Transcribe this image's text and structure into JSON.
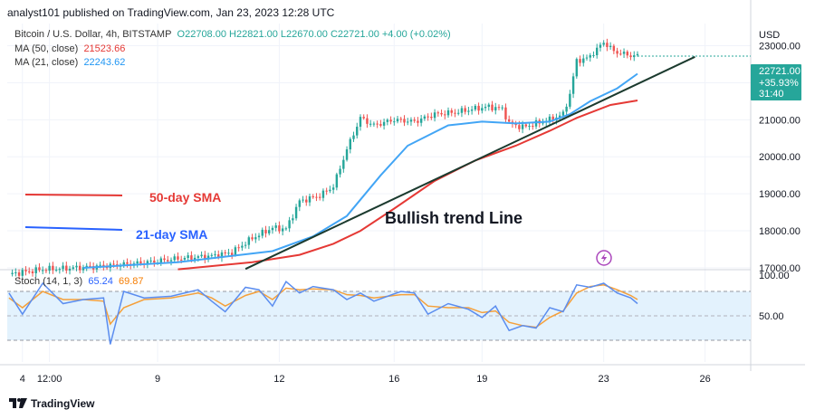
{
  "header": {
    "text": "analyst101 published on TradingView.com, Jan 23, 2023 12:28 UTC"
  },
  "legend": {
    "symbol": "Bitcoin / U.S. Dollar, 4h, BITSTAMP",
    "open": "O22708.00",
    "high": "H22821.00",
    "low": "L22670.00",
    "close": "C22721.00",
    "change": "+4.00 (+0.02%)",
    "ma50_label": "MA (50, close)",
    "ma50_value": "21523.66",
    "ma21_label": "MA (21, close)",
    "ma21_value": "22243.62"
  },
  "stoch_legend": {
    "label": "Stoch (14, 1, 3)",
    "k": "65.24",
    "d": "69.87"
  },
  "price_axis": {
    "currency": "USD",
    "ticks": [
      "23000.00",
      "22000.00",
      "21000.00",
      "20000.00",
      "19000.00",
      "18000.00",
      "17000.00"
    ]
  },
  "price_badge": {
    "price": "22721.00",
    "change": "+35.93%",
    "countdown": "31:40"
  },
  "stoch_axis": {
    "ticks": [
      "100.00",
      "50.00"
    ]
  },
  "time_axis": {
    "ticks": [
      "4",
      "12:00",
      "9",
      "12",
      "16",
      "19",
      "23",
      "26"
    ]
  },
  "annotations": {
    "sma50": "50-day SMA",
    "sma21": "21-day SMA",
    "trend": "Bullish trend Line"
  },
  "footer": {
    "brand": "TradingView"
  },
  "colors": {
    "up": "#26a69a",
    "down": "#ef5350",
    "ma50": "#e53935",
    "ma21": "#42a5f5",
    "trend": "#1b3a2e",
    "stoch_k": "#5b8def",
    "stoch_d": "#f5a03a",
    "stoch_band": "#e3f2fd"
  },
  "chart_data": {
    "type": "candlestick",
    "ylim": [
      16950,
      23600
    ],
    "stoch_ylim": [
      0,
      100
    ],
    "stoch_band": [
      20,
      80
    ],
    "ohlc_anchors": [
      [
        0,
        16830
      ],
      [
        10,
        16960
      ],
      [
        18,
        16990
      ],
      [
        30,
        17060
      ],
      [
        40,
        17140
      ],
      [
        50,
        17250
      ],
      [
        60,
        17320
      ],
      [
        66,
        17420
      ],
      [
        72,
        17800
      ],
      [
        78,
        18080
      ],
      [
        82,
        18050
      ],
      [
        86,
        18800
      ],
      [
        92,
        18950
      ],
      [
        96,
        19200
      ],
      [
        100,
        20200
      ],
      [
        104,
        21050
      ],
      [
        108,
        20850
      ],
      [
        114,
        21000
      ],
      [
        120,
        20950
      ],
      [
        126,
        21150
      ],
      [
        132,
        21200
      ],
      [
        138,
        21300
      ],
      [
        142,
        21350
      ],
      [
        146,
        21300
      ],
      [
        148,
        20900
      ],
      [
        152,
        20800
      ],
      [
        156,
        20900
      ],
      [
        160,
        21000
      ],
      [
        164,
        21150
      ],
      [
        166,
        21700
      ],
      [
        168,
        22600
      ],
      [
        171,
        22650
      ],
      [
        174,
        22900
      ],
      [
        176,
        23100
      ],
      [
        179,
        22850
      ],
      [
        183,
        22750
      ],
      [
        186,
        22721
      ]
    ],
    "ma21": [
      [
        22,
        17000
      ],
      [
        50,
        17150
      ],
      [
        78,
        17450
      ],
      [
        90,
        17850
      ],
      [
        100,
        18400
      ],
      [
        110,
        19500
      ],
      [
        118,
        20300
      ],
      [
        130,
        20850
      ],
      [
        140,
        20950
      ],
      [
        150,
        20900
      ],
      [
        160,
        20950
      ],
      [
        166,
        21150
      ],
      [
        172,
        21500
      ],
      [
        180,
        21850
      ],
      [
        186,
        22243
      ]
    ],
    "ma50": [
      [
        50,
        16960
      ],
      [
        72,
        17150
      ],
      [
        86,
        17350
      ],
      [
        96,
        17650
      ],
      [
        104,
        18000
      ],
      [
        114,
        18600
      ],
      [
        126,
        19350
      ],
      [
        138,
        19900
      ],
      [
        150,
        20300
      ],
      [
        160,
        20700
      ],
      [
        168,
        21050
      ],
      [
        178,
        21400
      ],
      [
        186,
        21523
      ]
    ],
    "trend_line": [
      [
        70,
        16970
      ],
      [
        203,
        22700
      ]
    ],
    "stoch_k": [
      [
        0,
        78
      ],
      [
        4,
        52
      ],
      [
        10,
        90
      ],
      [
        16,
        65
      ],
      [
        22,
        70
      ],
      [
        28,
        72
      ],
      [
        30,
        15
      ],
      [
        34,
        80
      ],
      [
        40,
        72
      ],
      [
        48,
        74
      ],
      [
        56,
        82
      ],
      [
        60,
        68
      ],
      [
        64,
        55
      ],
      [
        70,
        85
      ],
      [
        74,
        82
      ],
      [
        78,
        62
      ],
      [
        82,
        92
      ],
      [
        86,
        78
      ],
      [
        90,
        86
      ],
      [
        96,
        82
      ],
      [
        100,
        70
      ],
      [
        104,
        78
      ],
      [
        108,
        68
      ],
      [
        116,
        80
      ],
      [
        120,
        78
      ],
      [
        124,
        52
      ],
      [
        130,
        65
      ],
      [
        136,
        58
      ],
      [
        140,
        48
      ],
      [
        144,
        62
      ],
      [
        148,
        32
      ],
      [
        152,
        38
      ],
      [
        156,
        35
      ],
      [
        160,
        60
      ],
      [
        164,
        55
      ],
      [
        168,
        88
      ],
      [
        172,
        85
      ],
      [
        176,
        90
      ],
      [
        180,
        78
      ],
      [
        184,
        72
      ],
      [
        186,
        65
      ]
    ],
    "stoch_d": [
      [
        0,
        72
      ],
      [
        4,
        60
      ],
      [
        10,
        80
      ],
      [
        16,
        70
      ],
      [
        22,
        70
      ],
      [
        28,
        68
      ],
      [
        30,
        40
      ],
      [
        34,
        60
      ],
      [
        40,
        70
      ],
      [
        48,
        72
      ],
      [
        56,
        78
      ],
      [
        60,
        72
      ],
      [
        64,
        62
      ],
      [
        70,
        75
      ],
      [
        74,
        80
      ],
      [
        78,
        70
      ],
      [
        82,
        84
      ],
      [
        86,
        82
      ],
      [
        90,
        83
      ],
      [
        96,
        82
      ],
      [
        100,
        76
      ],
      [
        104,
        75
      ],
      [
        108,
        72
      ],
      [
        116,
        76
      ],
      [
        120,
        76
      ],
      [
        124,
        62
      ],
      [
        130,
        60
      ],
      [
        136,
        60
      ],
      [
        140,
        54
      ],
      [
        144,
        56
      ],
      [
        148,
        42
      ],
      [
        152,
        38
      ],
      [
        156,
        36
      ],
      [
        160,
        48
      ],
      [
        164,
        56
      ],
      [
        168,
        78
      ],
      [
        172,
        86
      ],
      [
        176,
        88
      ],
      [
        180,
        82
      ],
      [
        184,
        75
      ],
      [
        186,
        70
      ]
    ]
  }
}
